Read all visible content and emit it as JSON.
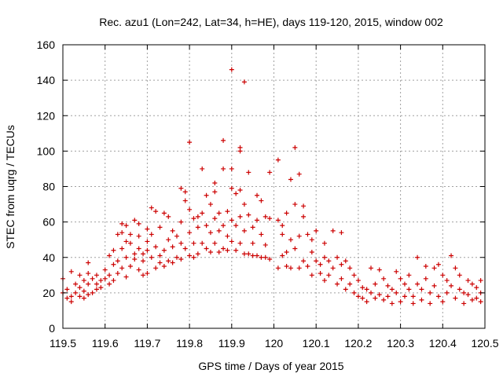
{
  "chart_data": {
    "type": "scatter",
    "title": "Rec. azu1 (Lon=242, Lat=34, h=HE), days 119-120, 2015, window 002",
    "xlabel": "GPS time / Days of year 2015",
    "ylabel": "STEC from uqrg / TECUs",
    "xlim": [
      119.5,
      120.5
    ],
    "ylim": [
      0,
      160
    ],
    "xticks": [
      119.5,
      119.6,
      119.7,
      119.8,
      119.9,
      120,
      120.1,
      120.2,
      120.3,
      120.4,
      120.5
    ],
    "xtick_labels": [
      "119.5",
      "119.6",
      "119.7",
      "119.8",
      "119.9",
      "120",
      "120.1",
      "120.2",
      "120.3",
      "120.4",
      "120.5"
    ],
    "yticks": [
      0,
      20,
      40,
      60,
      80,
      100,
      120,
      140,
      160
    ],
    "ytick_labels": [
      "0",
      "20",
      "40",
      "60",
      "80",
      "100",
      "120",
      "140",
      "160"
    ],
    "grid": true,
    "marker": "+",
    "color": "#cc0000",
    "points": [
      [
        119.5,
        28
      ],
      [
        119.5,
        20
      ],
      [
        119.51,
        17
      ],
      [
        119.51,
        22
      ],
      [
        119.52,
        32
      ],
      [
        119.52,
        18
      ],
      [
        119.52,
        15
      ],
      [
        119.53,
        25
      ],
      [
        119.53,
        20
      ],
      [
        119.54,
        30
      ],
      [
        119.54,
        18
      ],
      [
        119.54,
        23
      ],
      [
        119.55,
        17
      ],
      [
        119.55,
        27
      ],
      [
        119.55,
        21
      ],
      [
        119.56,
        31
      ],
      [
        119.56,
        19
      ],
      [
        119.56,
        25
      ],
      [
        119.56,
        37
      ],
      [
        119.57,
        20
      ],
      [
        119.57,
        28
      ],
      [
        119.58,
        22
      ],
      [
        119.58,
        30
      ],
      [
        119.58,
        25
      ],
      [
        119.59,
        27
      ],
      [
        119.59,
        23
      ],
      [
        119.6,
        28
      ],
      [
        119.6,
        33
      ],
      [
        119.61,
        41
      ],
      [
        119.61,
        25
      ],
      [
        119.61,
        30
      ],
      [
        119.62,
        36
      ],
      [
        119.62,
        27
      ],
      [
        119.62,
        44
      ],
      [
        119.63,
        31
      ],
      [
        119.63,
        38
      ],
      [
        119.63,
        53
      ],
      [
        119.64,
        59
      ],
      [
        119.64,
        34
      ],
      [
        119.64,
        45
      ],
      [
        119.64,
        54
      ],
      [
        119.65,
        58
      ],
      [
        119.65,
        40
      ],
      [
        119.65,
        49
      ],
      [
        119.65,
        29
      ],
      [
        119.66,
        48
      ],
      [
        119.66,
        35
      ],
      [
        119.66,
        53
      ],
      [
        119.67,
        61
      ],
      [
        119.67,
        42
      ],
      [
        119.67,
        39
      ],
      [
        119.68,
        59
      ],
      [
        119.68,
        45
      ],
      [
        119.68,
        33
      ],
      [
        119.68,
        52
      ],
      [
        119.69,
        42
      ],
      [
        119.69,
        30
      ],
      [
        119.69,
        38
      ],
      [
        119.7,
        49
      ],
      [
        119.7,
        56
      ],
      [
        119.7,
        44
      ],
      [
        119.7,
        31
      ],
      [
        119.71,
        68
      ],
      [
        119.71,
        40
      ],
      [
        119.71,
        53
      ],
      [
        119.72,
        34
      ],
      [
        119.72,
        46
      ],
      [
        119.72,
        66
      ],
      [
        119.73,
        37
      ],
      [
        119.73,
        41
      ],
      [
        119.73,
        57
      ],
      [
        119.74,
        65
      ],
      [
        119.74,
        35
      ],
      [
        119.74,
        44
      ],
      [
        119.75,
        63
      ],
      [
        119.75,
        50
      ],
      [
        119.75,
        38
      ],
      [
        119.76,
        37
      ],
      [
        119.76,
        55
      ],
      [
        119.76,
        46
      ],
      [
        119.77,
        52
      ],
      [
        119.77,
        40
      ],
      [
        119.78,
        79
      ],
      [
        119.78,
        60
      ],
      [
        119.78,
        48
      ],
      [
        119.78,
        39
      ],
      [
        119.79,
        77
      ],
      [
        119.79,
        72
      ],
      [
        119.79,
        45
      ],
      [
        119.8,
        67
      ],
      [
        119.8,
        54
      ],
      [
        119.8,
        41
      ],
      [
        119.8,
        105
      ],
      [
        119.81,
        62
      ],
      [
        119.81,
        48
      ],
      [
        119.81,
        40
      ],
      [
        119.82,
        57
      ],
      [
        119.82,
        42
      ],
      [
        119.82,
        63
      ],
      [
        119.83,
        90
      ],
      [
        119.83,
        65
      ],
      [
        119.83,
        48
      ],
      [
        119.84,
        58
      ],
      [
        119.84,
        45
      ],
      [
        119.84,
        75
      ],
      [
        119.85,
        70
      ],
      [
        119.85,
        54
      ],
      [
        119.85,
        43
      ],
      [
        119.86,
        82
      ],
      [
        119.86,
        77
      ],
      [
        119.86,
        62
      ],
      [
        119.86,
        48
      ],
      [
        119.87,
        65
      ],
      [
        119.87,
        43
      ],
      [
        119.87,
        55
      ],
      [
        119.88,
        106
      ],
      [
        119.88,
        90
      ],
      [
        119.88,
        58
      ],
      [
        119.88,
        45
      ],
      [
        119.89,
        66
      ],
      [
        119.89,
        52
      ],
      [
        119.89,
        44
      ],
      [
        119.9,
        146
      ],
      [
        119.9,
        90
      ],
      [
        119.9,
        79
      ],
      [
        119.9,
        61
      ],
      [
        119.9,
        49
      ],
      [
        119.91,
        76
      ],
      [
        119.91,
        58
      ],
      [
        119.91,
        44
      ],
      [
        119.92,
        102
      ],
      [
        119.92,
        100
      ],
      [
        119.92,
        78
      ],
      [
        119.92,
        63
      ],
      [
        119.92,
        48
      ],
      [
        119.93,
        139
      ],
      [
        119.93,
        70
      ],
      [
        119.93,
        55
      ],
      [
        119.93,
        42
      ],
      [
        119.94,
        88
      ],
      [
        119.94,
        64
      ],
      [
        119.94,
        42
      ],
      [
        119.95,
        57
      ],
      [
        119.95,
        48
      ],
      [
        119.95,
        41
      ],
      [
        119.96,
        75
      ],
      [
        119.96,
        61
      ],
      [
        119.96,
        41
      ],
      [
        119.97,
        72
      ],
      [
        119.97,
        53
      ],
      [
        119.97,
        40
      ],
      [
        119.98,
        63
      ],
      [
        119.98,
        47
      ],
      [
        119.98,
        40
      ],
      [
        119.99,
        88
      ],
      [
        119.99,
        62
      ],
      [
        119.99,
        39
      ],
      [
        120.01,
        95
      ],
      [
        120.01,
        61
      ],
      [
        120.01,
        34
      ],
      [
        120.02,
        58
      ],
      [
        120.02,
        41
      ],
      [
        120.02,
        53
      ],
      [
        120.03,
        65
      ],
      [
        120.03,
        43
      ],
      [
        120.03,
        35
      ],
      [
        120.04,
        84
      ],
      [
        120.04,
        50
      ],
      [
        120.04,
        34
      ],
      [
        120.05,
        102
      ],
      [
        120.05,
        70
      ],
      [
        120.05,
        45
      ],
      [
        120.06,
        87
      ],
      [
        120.06,
        52
      ],
      [
        120.06,
        34
      ],
      [
        120.07,
        69
      ],
      [
        120.07,
        63
      ],
      [
        120.07,
        38
      ],
      [
        120.08,
        53
      ],
      [
        120.08,
        35
      ],
      [
        120.09,
        50
      ],
      [
        120.09,
        43
      ],
      [
        120.09,
        30
      ],
      [
        120.1,
        55
      ],
      [
        120.1,
        38
      ],
      [
        120.11,
        36
      ],
      [
        120.11,
        31
      ],
      [
        120.12,
        48
      ],
      [
        120.12,
        40
      ],
      [
        120.12,
        27
      ],
      [
        120.13,
        38
      ],
      [
        120.13,
        30
      ],
      [
        120.14,
        55
      ],
      [
        120.14,
        34
      ],
      [
        120.15,
        40
      ],
      [
        120.15,
        25
      ],
      [
        120.16,
        54
      ],
      [
        120.16,
        36
      ],
      [
        120.16,
        28
      ],
      [
        120.17,
        38
      ],
      [
        120.17,
        22
      ],
      [
        120.18,
        34
      ],
      [
        120.18,
        25
      ],
      [
        120.19,
        30
      ],
      [
        120.19,
        20
      ],
      [
        120.2,
        27
      ],
      [
        120.2,
        18
      ],
      [
        120.21,
        23
      ],
      [
        120.21,
        17
      ],
      [
        120.22,
        22
      ],
      [
        120.22,
        15
      ],
      [
        120.23,
        34
      ],
      [
        120.23,
        20
      ],
      [
        120.24,
        25
      ],
      [
        120.24,
        17
      ],
      [
        120.25,
        33
      ],
      [
        120.25,
        19
      ],
      [
        120.26,
        28
      ],
      [
        120.26,
        16
      ],
      [
        120.27,
        24
      ],
      [
        120.27,
        18
      ],
      [
        120.28,
        22
      ],
      [
        120.28,
        14
      ],
      [
        120.29,
        32
      ],
      [
        120.29,
        20
      ],
      [
        120.3,
        28
      ],
      [
        120.3,
        15
      ],
      [
        120.31,
        25
      ],
      [
        120.31,
        18
      ],
      [
        120.32,
        30
      ],
      [
        120.32,
        22
      ],
      [
        120.33,
        18
      ],
      [
        120.33,
        14
      ],
      [
        120.34,
        40
      ],
      [
        120.34,
        25
      ],
      [
        120.35,
        22
      ],
      [
        120.35,
        16
      ],
      [
        120.36,
        35
      ],
      [
        120.36,
        28
      ],
      [
        120.37,
        20
      ],
      [
        120.37,
        14
      ],
      [
        120.38,
        34
      ],
      [
        120.38,
        24
      ],
      [
        120.39,
        36
      ],
      [
        120.39,
        18
      ],
      [
        120.4,
        30
      ],
      [
        120.4,
        15
      ],
      [
        120.41,
        27
      ],
      [
        120.41,
        20
      ],
      [
        120.42,
        41
      ],
      [
        120.42,
        24
      ],
      [
        120.43,
        34
      ],
      [
        120.43,
        17
      ],
      [
        120.44,
        30
      ],
      [
        120.44,
        22
      ],
      [
        120.45,
        20
      ],
      [
        120.45,
        14
      ],
      [
        120.46,
        27
      ],
      [
        120.46,
        19
      ],
      [
        120.47,
        25
      ],
      [
        120.47,
        16
      ],
      [
        120.48,
        23
      ],
      [
        120.48,
        17
      ],
      [
        120.49,
        27
      ],
      [
        120.49,
        20
      ],
      [
        120.49,
        15
      ]
    ]
  }
}
